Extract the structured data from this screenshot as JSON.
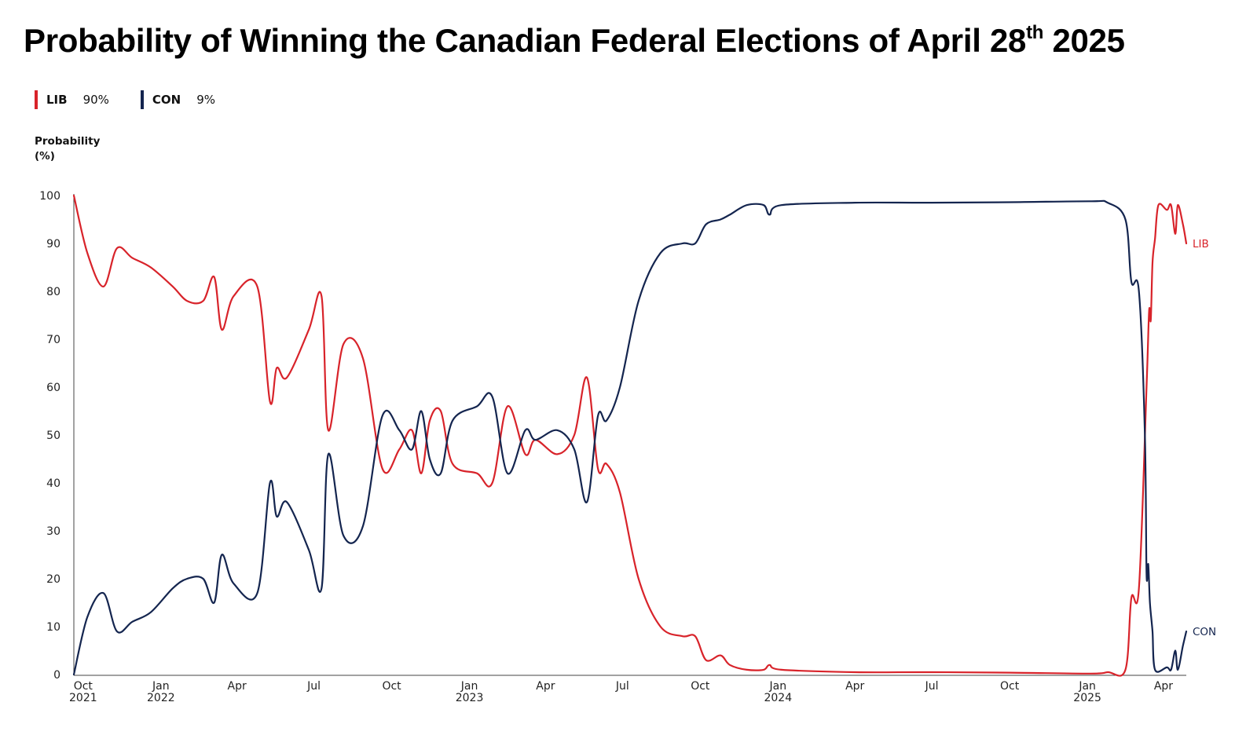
{
  "title": {
    "main": "Probability of Winning the Canadian Federal Elections of  April 28",
    "sup": "th",
    "tail": " 2025"
  },
  "legend": [
    {
      "name": "LIB",
      "value": "90%",
      "color": "#d8232a"
    },
    {
      "name": "CON",
      "value": "9%",
      "color": "#14254f"
    }
  ],
  "chart_data": {
    "type": "line",
    "ylabel": "Probability (%)",
    "ylim": [
      0,
      100
    ],
    "yticks": [
      0,
      10,
      20,
      30,
      40,
      50,
      60,
      70,
      80,
      90,
      100
    ],
    "xlim": [
      "2021-09-20",
      "2025-04-28"
    ],
    "xticks": [
      {
        "date": "2021-10-01",
        "label": "Oct",
        "year": "2021"
      },
      {
        "date": "2022-01-01",
        "label": "Jan",
        "year": "2022"
      },
      {
        "date": "2022-04-01",
        "label": "Apr",
        "year": ""
      },
      {
        "date": "2022-07-01",
        "label": "Jul",
        "year": ""
      },
      {
        "date": "2022-10-01",
        "label": "Oct",
        "year": ""
      },
      {
        "date": "2023-01-01",
        "label": "Jan",
        "year": "2023"
      },
      {
        "date": "2023-04-01",
        "label": "Apr",
        "year": ""
      },
      {
        "date": "2023-07-01",
        "label": "Jul",
        "year": ""
      },
      {
        "date": "2023-10-01",
        "label": "Oct",
        "year": ""
      },
      {
        "date": "2024-01-01",
        "label": "Jan",
        "year": "2024"
      },
      {
        "date": "2024-04-01",
        "label": "Apr",
        "year": ""
      },
      {
        "date": "2024-07-01",
        "label": "Jul",
        "year": ""
      },
      {
        "date": "2024-10-01",
        "label": "Oct",
        "year": ""
      },
      {
        "date": "2025-01-01",
        "label": "Jan",
        "year": "2025"
      },
      {
        "date": "2025-04-01",
        "label": "Apr",
        "year": ""
      }
    ],
    "grid": false,
    "series": [
      {
        "name": "LIB",
        "color": "#d8232a",
        "end_label": "LIB",
        "points": [
          [
            "2021-09-20",
            100
          ],
          [
            "2021-10-06",
            88
          ],
          [
            "2021-10-25",
            81
          ],
          [
            "2021-11-10",
            89
          ],
          [
            "2021-11-28",
            87
          ],
          [
            "2021-12-20",
            85
          ],
          [
            "2022-01-15",
            81
          ],
          [
            "2022-02-01",
            78
          ],
          [
            "2022-02-20",
            78
          ],
          [
            "2022-03-05",
            83
          ],
          [
            "2022-03-14",
            72
          ],
          [
            "2022-03-28",
            79
          ],
          [
            "2022-04-25",
            81
          ],
          [
            "2022-05-10",
            57
          ],
          [
            "2022-05-18",
            64
          ],
          [
            "2022-05-30",
            62
          ],
          [
            "2022-06-25",
            72
          ],
          [
            "2022-07-10",
            79
          ],
          [
            "2022-07-18",
            51
          ],
          [
            "2022-08-05",
            69
          ],
          [
            "2022-08-28",
            66
          ],
          [
            "2022-09-20",
            43
          ],
          [
            "2022-10-10",
            47
          ],
          [
            "2022-10-25",
            51
          ],
          [
            "2022-11-05",
            42
          ],
          [
            "2022-11-15",
            53
          ],
          [
            "2022-11-28",
            55
          ],
          [
            "2022-12-12",
            44
          ],
          [
            "2023-01-10",
            42
          ],
          [
            "2023-01-28",
            40
          ],
          [
            "2023-02-15",
            56
          ],
          [
            "2023-03-08",
            46
          ],
          [
            "2023-03-20",
            49
          ],
          [
            "2023-04-15",
            46
          ],
          [
            "2023-05-05",
            50
          ],
          [
            "2023-05-20",
            62
          ],
          [
            "2023-06-02",
            43
          ],
          [
            "2023-06-12",
            44
          ],
          [
            "2023-06-28",
            38
          ],
          [
            "2023-07-20",
            20
          ],
          [
            "2023-08-15",
            10
          ],
          [
            "2023-09-10",
            8
          ],
          [
            "2023-09-25",
            8
          ],
          [
            "2023-10-08",
            3
          ],
          [
            "2023-10-25",
            4
          ],
          [
            "2023-11-05",
            2
          ],
          [
            "2023-11-25",
            1
          ],
          [
            "2023-12-15",
            1
          ],
          [
            "2023-12-22",
            2
          ],
          [
            "2024-01-05",
            1
          ],
          [
            "2024-04-01",
            0.5
          ],
          [
            "2024-07-01",
            0.5
          ],
          [
            "2024-10-01",
            0.4
          ],
          [
            "2025-01-05",
            0.2
          ],
          [
            "2025-01-25",
            0.5
          ],
          [
            "2025-02-15",
            1
          ],
          [
            "2025-02-22",
            16
          ],
          [
            "2025-03-03",
            18
          ],
          [
            "2025-03-12",
            60
          ],
          [
            "2025-03-15",
            76
          ],
          [
            "2025-03-17",
            74
          ],
          [
            "2025-03-19",
            86
          ],
          [
            "2025-03-22",
            91
          ],
          [
            "2025-03-26",
            98
          ],
          [
            "2025-04-05",
            97
          ],
          [
            "2025-04-10",
            98
          ],
          [
            "2025-04-15",
            92
          ],
          [
            "2025-04-18",
            98
          ],
          [
            "2025-04-24",
            94
          ],
          [
            "2025-04-28",
            90
          ]
        ]
      },
      {
        "name": "CON",
        "color": "#14254f",
        "end_label": "CON",
        "points": [
          [
            "2021-09-20",
            0
          ],
          [
            "2021-10-06",
            12
          ],
          [
            "2021-10-25",
            17
          ],
          [
            "2021-11-10",
            9
          ],
          [
            "2021-11-28",
            11
          ],
          [
            "2021-12-20",
            13
          ],
          [
            "2022-01-15",
            18
          ],
          [
            "2022-02-01",
            20
          ],
          [
            "2022-02-20",
            20
          ],
          [
            "2022-03-05",
            15
          ],
          [
            "2022-03-14",
            25
          ],
          [
            "2022-03-28",
            19
          ],
          [
            "2022-04-25",
            17
          ],
          [
            "2022-05-10",
            40
          ],
          [
            "2022-05-18",
            33
          ],
          [
            "2022-05-30",
            36
          ],
          [
            "2022-06-25",
            26
          ],
          [
            "2022-07-10",
            18
          ],
          [
            "2022-07-18",
            46
          ],
          [
            "2022-08-05",
            29
          ],
          [
            "2022-08-28",
            31
          ],
          [
            "2022-09-20",
            54
          ],
          [
            "2022-10-10",
            51
          ],
          [
            "2022-10-25",
            47
          ],
          [
            "2022-11-05",
            55
          ],
          [
            "2022-11-15",
            45
          ],
          [
            "2022-11-28",
            42
          ],
          [
            "2022-12-12",
            53
          ],
          [
            "2023-01-10",
            56
          ],
          [
            "2023-01-28",
            58
          ],
          [
            "2023-02-15",
            42
          ],
          [
            "2023-03-08",
            51
          ],
          [
            "2023-03-20",
            49
          ],
          [
            "2023-04-15",
            51
          ],
          [
            "2023-05-05",
            47
          ],
          [
            "2023-05-20",
            36
          ],
          [
            "2023-06-02",
            54
          ],
          [
            "2023-06-12",
            53
          ],
          [
            "2023-06-28",
            60
          ],
          [
            "2023-07-20",
            78
          ],
          [
            "2023-08-15",
            88
          ],
          [
            "2023-09-10",
            90
          ],
          [
            "2023-09-25",
            90
          ],
          [
            "2023-10-08",
            94
          ],
          [
            "2023-10-25",
            95
          ],
          [
            "2023-11-05",
            96
          ],
          [
            "2023-11-25",
            98
          ],
          [
            "2023-12-15",
            98
          ],
          [
            "2023-12-22",
            96
          ],
          [
            "2024-01-05",
            98
          ],
          [
            "2024-04-01",
            98.5
          ],
          [
            "2024-07-01",
            98.5
          ],
          [
            "2024-10-01",
            98.6
          ],
          [
            "2025-01-05",
            98.8
          ],
          [
            "2025-01-25",
            98.5
          ],
          [
            "2025-02-15",
            95
          ],
          [
            "2025-02-22",
            82
          ],
          [
            "2025-03-03",
            80
          ],
          [
            "2025-03-10",
            50
          ],
          [
            "2025-03-12",
            21
          ],
          [
            "2025-03-14",
            23
          ],
          [
            "2025-03-16",
            15
          ],
          [
            "2025-03-19",
            9
          ],
          [
            "2025-03-22",
            1
          ],
          [
            "2025-04-05",
            1.5
          ],
          [
            "2025-04-10",
            1
          ],
          [
            "2025-04-15",
            5
          ],
          [
            "2025-04-18",
            1
          ],
          [
            "2025-04-24",
            6
          ],
          [
            "2025-04-28",
            9
          ]
        ]
      }
    ]
  }
}
